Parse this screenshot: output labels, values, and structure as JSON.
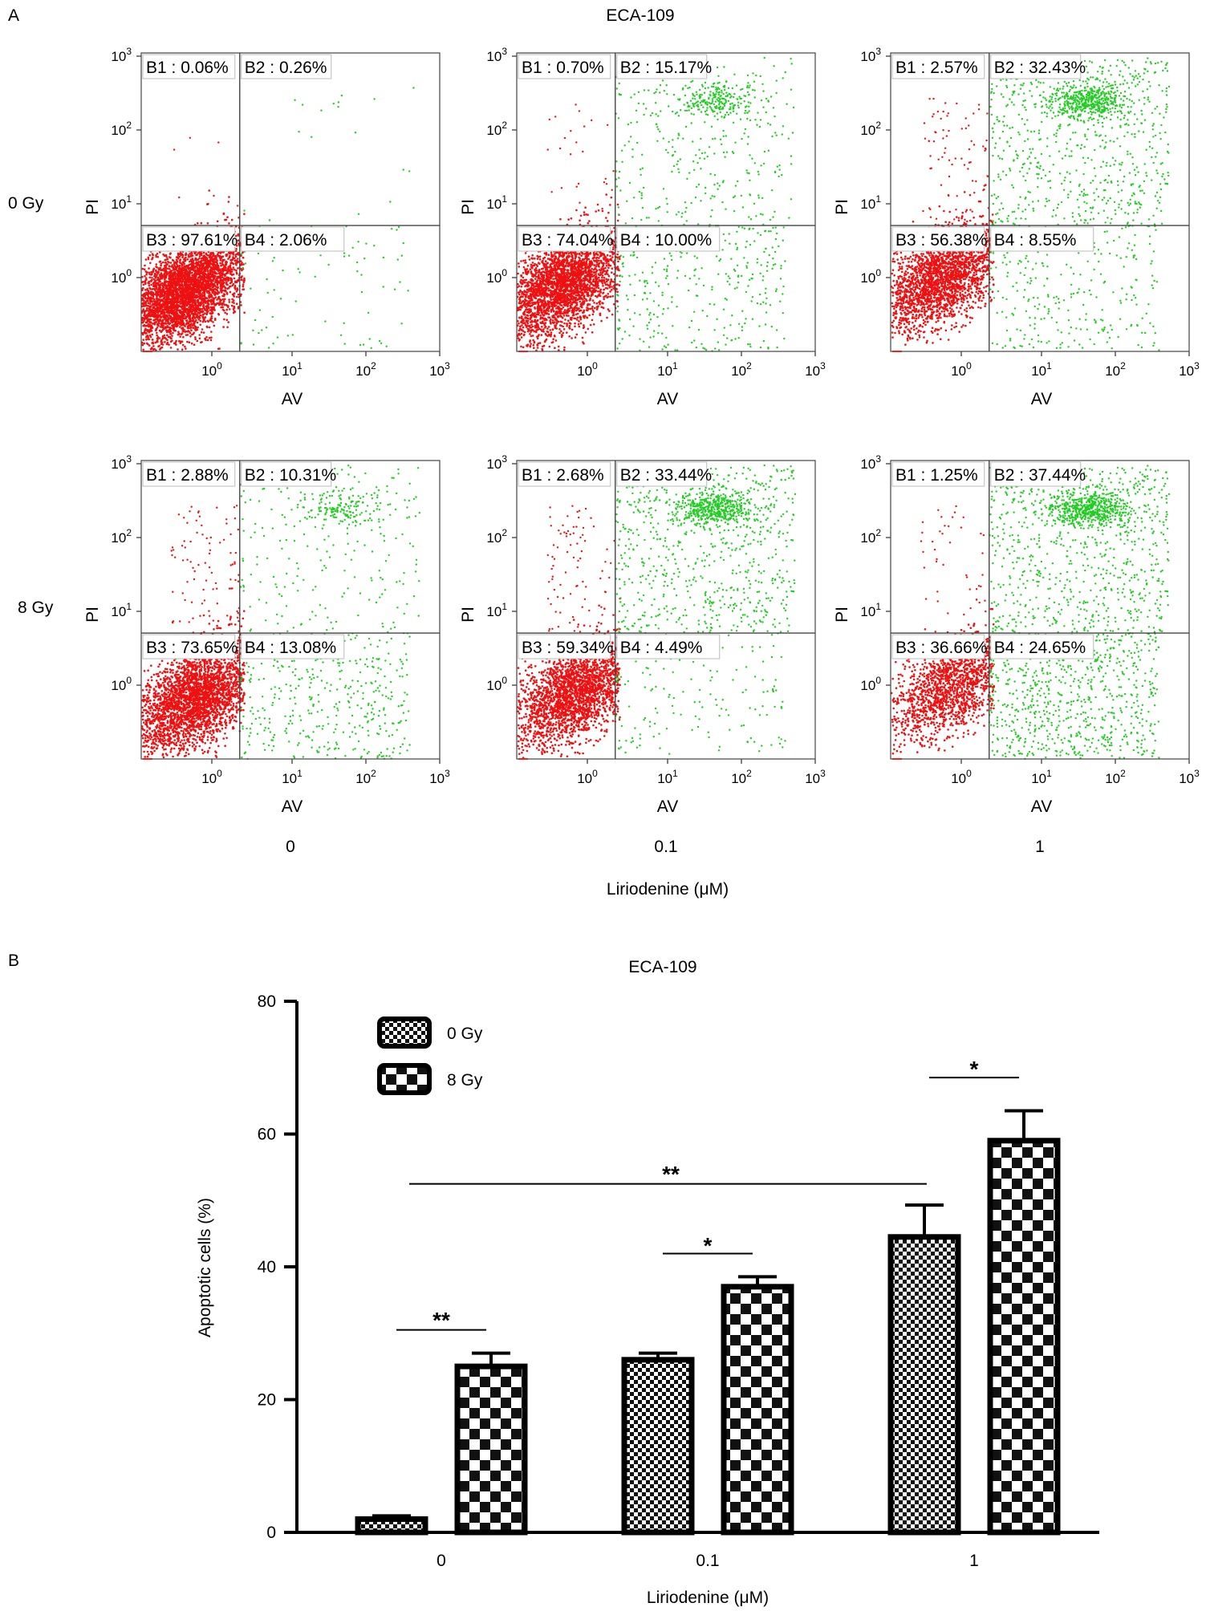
{
  "panel_a": {
    "letter": "A",
    "title": "ECA-109",
    "row_labels": [
      "0 Gy",
      "8 Gy"
    ],
    "col_labels": [
      "0",
      "0.1",
      "1"
    ],
    "x_axis_title": "Liriodenine (μM)",
    "plot_xlabel": "AV",
    "plot_ylabel": "PI",
    "y_ticks": [
      {
        "base": "10",
        "exp": "3"
      },
      {
        "base": "10",
        "exp": "2"
      },
      {
        "base": "10",
        "exp": "1"
      },
      {
        "base": "10",
        "exp": "0"
      }
    ],
    "x_ticks": [
      {
        "base": "10",
        "exp": "0"
      },
      {
        "base": "10",
        "exp": "1"
      },
      {
        "base": "10",
        "exp": "2"
      },
      {
        "base": "10",
        "exp": "3"
      }
    ],
    "colors": {
      "live": "#ee1111",
      "apoptotic": "#22cc22"
    }
  },
  "panel_b": {
    "letter": "B",
    "title": "ECA-109"
  },
  "chart_data": [
    {
      "type": "scatter",
      "title": "ECA-109",
      "xlabel": "AV",
      "ylabel": "PI",
      "x_scale": "log",
      "y_scale": "log",
      "plots": [
        {
          "dose": "0 Gy",
          "liriodenine": "0",
          "quadrants": {
            "B1": "B1 : 0.06%",
            "B2": "B2 : 0.26%",
            "B3": "B3 : 97.61%",
            "B4": "B4 : 2.06%"
          },
          "values": {
            "B1": 0.06,
            "B2": 0.26,
            "B3": 97.61,
            "B4": 2.06
          }
        },
        {
          "dose": "0 Gy",
          "liriodenine": "0.1",
          "quadrants": {
            "B1": "B1 : 0.70%",
            "B2": "B2 : 15.17%",
            "B3": "B3 : 74.04%",
            "B4": "B4 : 10.00%"
          },
          "values": {
            "B1": 0.7,
            "B2": 15.17,
            "B3": 74.04,
            "B4": 10.0
          }
        },
        {
          "dose": "0 Gy",
          "liriodenine": "1",
          "quadrants": {
            "B1": "B1 : 2.57%",
            "B2": "B2 : 32.43%",
            "B3": "B3 : 56.38%",
            "B4": "B4 : 8.55%"
          },
          "values": {
            "B1": 2.57,
            "B2": 32.43,
            "B3": 56.38,
            "B4": 8.55
          }
        },
        {
          "dose": "8 Gy",
          "liriodenine": "0",
          "quadrants": {
            "B1": "B1 : 2.88%",
            "B2": "B2 : 10.31%",
            "B3": "B3 : 73.65%",
            "B4": "B4 : 13.08%"
          },
          "values": {
            "B1": 2.88,
            "B2": 10.31,
            "B3": 73.65,
            "B4": 13.08
          }
        },
        {
          "dose": "8 Gy",
          "liriodenine": "0.1",
          "quadrants": {
            "B1": "B1 : 2.68%",
            "B2": "B2 : 33.44%",
            "B3": "B3 : 59.34%",
            "B4": "B4 : 4.49%"
          },
          "values": {
            "B1": 2.68,
            "B2": 33.44,
            "B3": 59.34,
            "B4": 4.49
          }
        },
        {
          "dose": "8 Gy",
          "liriodenine": "1",
          "quadrants": {
            "B1": "B1 : 1.25%",
            "B2": "B2 : 37.44%",
            "B3": "B3 : 36.66%",
            "B4": "B4 : 24.65%"
          },
          "values": {
            "B1": 1.25,
            "B2": 37.44,
            "B3": 36.66,
            "B4": 24.65
          }
        }
      ]
    },
    {
      "type": "bar",
      "title": "ECA-109",
      "xlabel": "Liriodenine (μM)",
      "ylabel": "Apoptotic cells (%)",
      "categories": [
        "0",
        "0.1",
        "1"
      ],
      "ylim": [
        0,
        80
      ],
      "yticks": [
        "0",
        "20",
        "40",
        "60",
        "80"
      ],
      "series": [
        {
          "name": "0 Gy",
          "pattern": "fine-checker",
          "values": [
            2,
            26,
            44.5
          ],
          "errors": [
            0.5,
            1,
            4.8
          ]
        },
        {
          "name": "8 Gy",
          "pattern": "coarse-checker",
          "values": [
            25,
            37,
            59
          ],
          "errors": [
            2,
            1.5,
            4.5
          ]
        }
      ],
      "significance": [
        {
          "label": "**",
          "between": "0 Gy vs 8 Gy at 0"
        },
        {
          "label": "*",
          "between": "0 Gy vs 8 Gy at 0.1"
        },
        {
          "label": "*",
          "between": "0 Gy vs 8 Gy at 1"
        },
        {
          "label": "**",
          "between": "0 Gy at 0 vs 0 Gy at 1"
        }
      ],
      "legend": "top-left",
      "grid": false
    }
  ]
}
